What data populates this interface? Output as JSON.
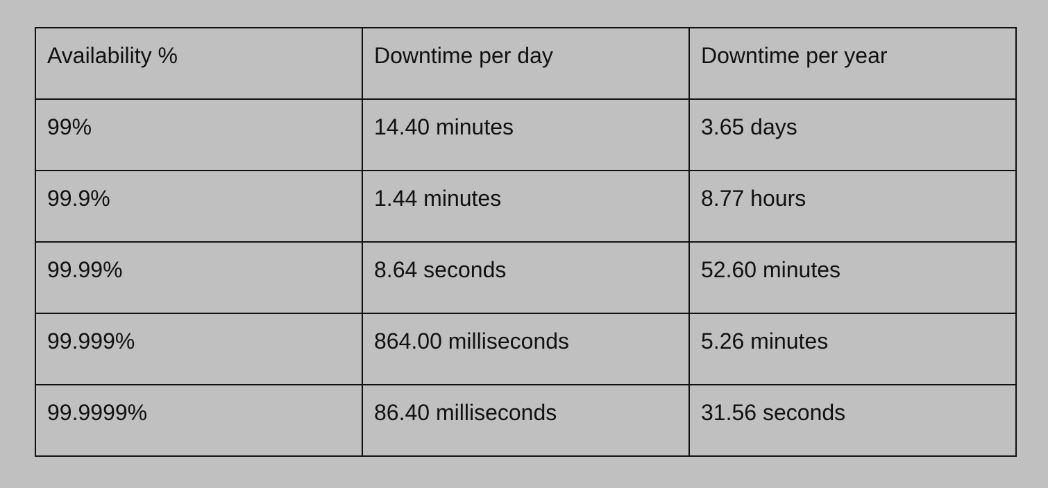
{
  "table": {
    "headers": [
      "Availability %",
      "Downtime per day",
      "Downtime per year"
    ],
    "rows": [
      [
        "99%",
        "14.40 minutes",
        "3.65 days"
      ],
      [
        "99.9%",
        "1.44 minutes",
        "8.77 hours"
      ],
      [
        "99.99%",
        "8.64 seconds",
        "52.60 minutes"
      ],
      [
        "99.999%",
        "864.00 milliseconds",
        "5.26 minutes"
      ],
      [
        "99.9999%",
        "86.40 milliseconds",
        "31.56 seconds"
      ]
    ]
  }
}
